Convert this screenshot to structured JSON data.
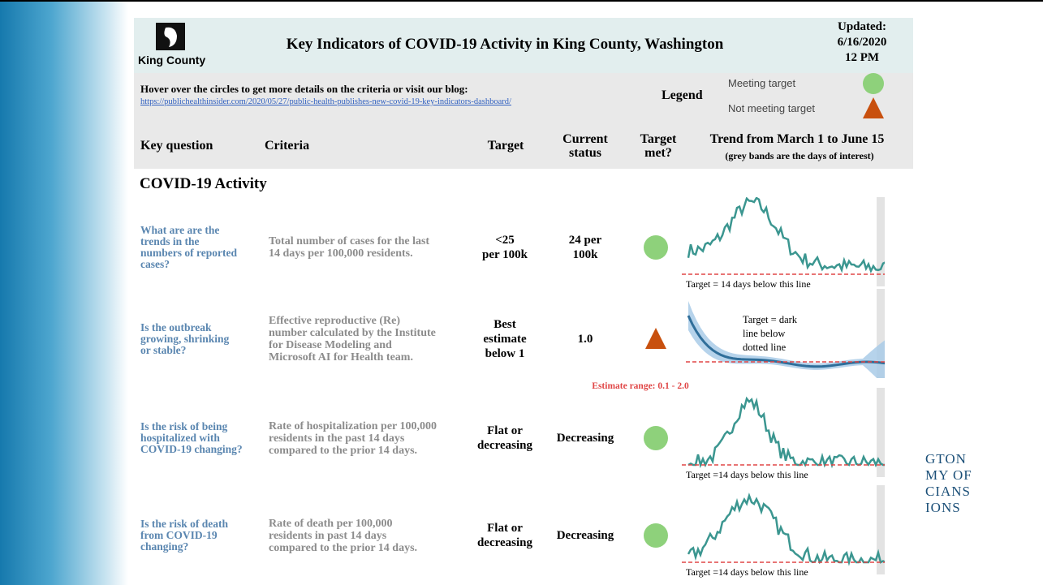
{
  "header": {
    "logo_text": "King County",
    "title": "Key Indicators of COVID-19 Activity in King County, Washington",
    "updated": [
      "Updated:",
      "6/16/2020",
      "12 PM"
    ]
  },
  "info": {
    "hover_text": "Hover over the circles to get more details on the criteria or visit our blog:",
    "link": "https://publichealthinsider.com/2020/05/27/public-health-publishes-new-covid-19-key-indicators-dashboard/",
    "legend_title": "Legend",
    "legend_items": [
      "Meeting target",
      "Not meeting target"
    ]
  },
  "columns": {
    "key_question": "Key question",
    "criteria": "Criteria",
    "target": "Target",
    "current_status": [
      "Current",
      "status"
    ],
    "target_met": [
      "Target",
      "met?"
    ],
    "trend": "Trend from March 1 to June 15",
    "trend_note": "(grey bands are the days of interest)"
  },
  "section": "COVID-19 Activity",
  "rows": [
    {
      "question": [
        "What are are the",
        "trends in the",
        "numbers of reported",
        "cases?"
      ],
      "criteria": [
        "Total number of cases for the last",
        "14 days per 100,000 residents."
      ],
      "target": [
        "<25",
        "per 100k"
      ],
      "status": [
        "24 per",
        "100k"
      ],
      "chart_label": "Target = 14 days below this line"
    },
    {
      "question": [
        "Is the outbreak",
        "growing, shrinking",
        "or stable?"
      ],
      "criteria": [
        "Effective reproductive (Re)",
        "number calculated by the Institute",
        "for Disease Modeling and",
        "Microsoft AI for Health team."
      ],
      "target": [
        "Best",
        "estimate",
        "below 1"
      ],
      "status": [
        "1.0"
      ],
      "note": "Estimate range: 0.1 - 2.0",
      "chart_label": [
        "Target = dark",
        "line below",
        "dotted line"
      ]
    },
    {
      "question": [
        "Is the risk of being",
        "hospitalized with",
        "COVID-19 changing?"
      ],
      "criteria": [
        "Rate of hospitalization per 100,000",
        "residents in the past 14 days",
        "compared to the prior 14 days."
      ],
      "target": [
        "Flat or",
        "decreasing"
      ],
      "status": [
        "Decreasing"
      ],
      "chart_label": "Target =14 days below this line"
    },
    {
      "question": [
        "Is the risk of death",
        "from COVID-19",
        "changing?"
      ],
      "criteria": [
        "Rate of death per 100,000",
        "residents in past 14 days",
        "compared to the prior 14 days."
      ],
      "target": [
        "Flat or",
        "decreasing"
      ],
      "status": [
        "Decreasing"
      ],
      "chart_label": "Target =14 days below this line"
    }
  ],
  "side_text": [
    "GTON",
    "MY OF",
    "CIANS",
    "IONS"
  ]
}
